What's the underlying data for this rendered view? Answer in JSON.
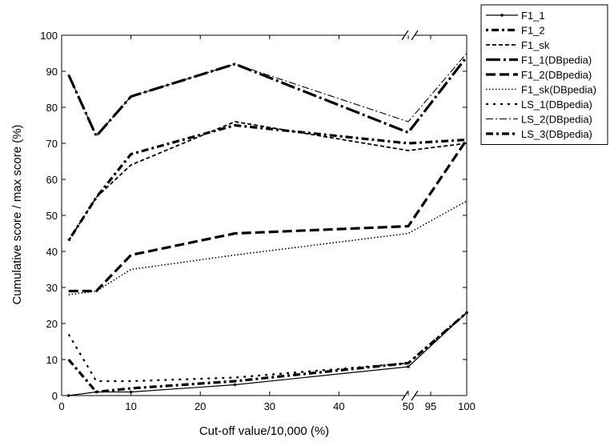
{
  "chart_data": {
    "type": "line",
    "xlabel": "Cut-off value/10,000   (%)",
    "ylabel": "Cumulative score / max score   (%)",
    "ylim": [
      0,
      100
    ],
    "x_ticks": [
      0,
      10,
      20,
      30,
      40,
      50,
      95,
      100
    ],
    "y_ticks": [
      0,
      10,
      20,
      30,
      40,
      50,
      60,
      70,
      80,
      90,
      100
    ],
    "x_axis_break": "between 50 and 95",
    "grid": false,
    "legend_position": "outside-right",
    "series": [
      {
        "name": "F1_1",
        "style": "solid-dot",
        "x": [
          1,
          5,
          10,
          25,
          50,
          100
        ],
        "y": [
          0,
          1,
          1,
          3,
          8,
          23
        ]
      },
      {
        "name": "F1_2",
        "style": "dot-dash-bold",
        "x": [
          1,
          5,
          10,
          25,
          50,
          100
        ],
        "y": [
          43,
          55,
          67,
          75,
          70,
          71
        ]
      },
      {
        "name": "F1_sk",
        "style": "short-dash",
        "x": [
          1,
          5,
          10,
          25,
          50,
          100
        ],
        "y": [
          43,
          55,
          64,
          76,
          68,
          70
        ]
      },
      {
        "name": "F1_1(DBpedia)",
        "style": "long-dash-dot-bold",
        "x": [
          1,
          5,
          10,
          25,
          50,
          100
        ],
        "y": [
          89,
          72,
          83,
          92,
          73,
          94
        ]
      },
      {
        "name": "F1_2(DBpedia)",
        "style": "long-dash-bold",
        "x": [
          1,
          5,
          10,
          25,
          50,
          100
        ],
        "y": [
          29,
          29,
          39,
          45,
          47,
          71
        ]
      },
      {
        "name": "F1_sk(DBpedia)",
        "style": "dotted",
        "x": [
          1,
          5,
          10,
          25,
          50,
          100
        ],
        "y": [
          28,
          29,
          35,
          39,
          45,
          54
        ]
      },
      {
        "name": "LS_1(DBpedia)",
        "style": "short-dash-gap",
        "x": [
          1,
          5,
          10,
          25,
          50,
          100
        ],
        "y": [
          17,
          4,
          4,
          5,
          9,
          23
        ]
      },
      {
        "name": "LS_2(DBpedia)",
        "style": "thin-dash-dot",
        "x": [
          1,
          5,
          10,
          25,
          50,
          100
        ],
        "y": [
          89,
          72,
          83,
          92,
          76,
          95
        ]
      },
      {
        "name": "LS_3(DBpedia)",
        "style": "dash-dot-bold",
        "x": [
          1,
          5,
          10,
          25,
          50,
          100
        ],
        "y": [
          10,
          1,
          2,
          4,
          9,
          23
        ]
      }
    ]
  }
}
